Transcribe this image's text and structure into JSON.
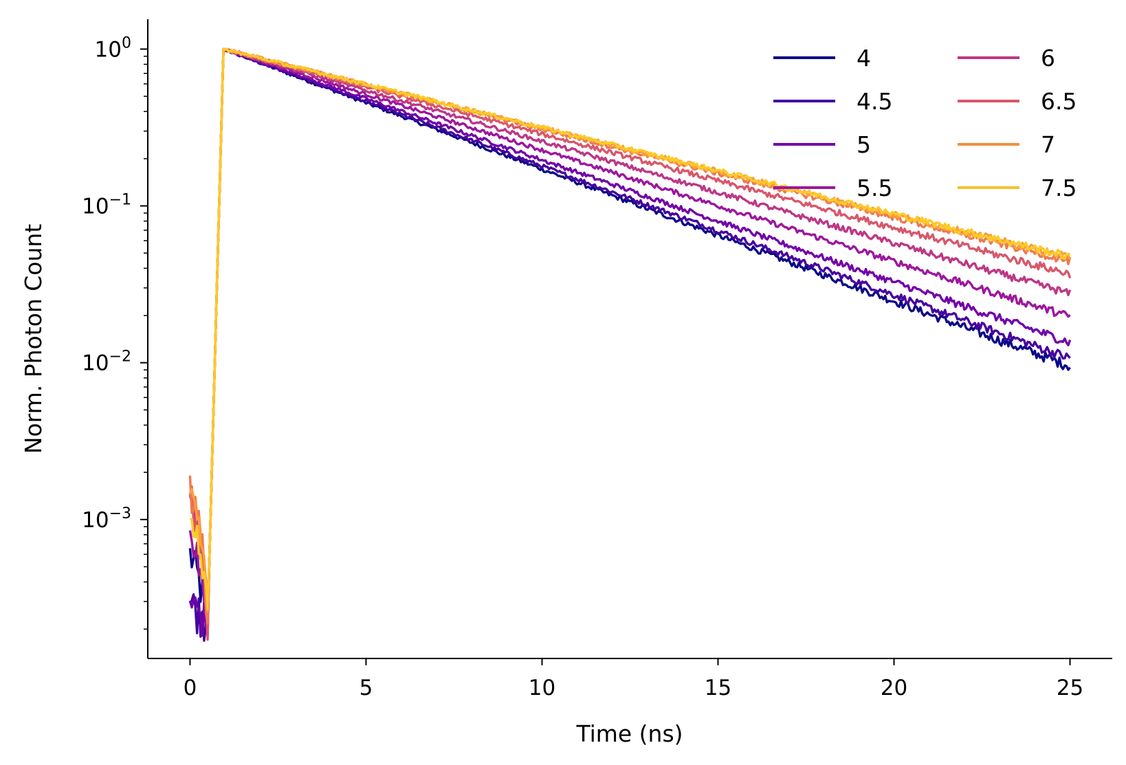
{
  "chart_data": {
    "type": "line",
    "title": "",
    "xlabel": "Time (ns)",
    "ylabel": "Norm. Photon Count",
    "yscale": "log",
    "xlim": [
      -1.2,
      26.2
    ],
    "ylim": [
      0.00013,
      1.55
    ],
    "xticks": [
      0,
      5,
      10,
      15,
      20,
      25
    ],
    "xtick_labels": [
      "0",
      "5",
      "10",
      "15",
      "20",
      "25"
    ],
    "yticks": [
      1,
      0.1,
      0.01,
      0.001
    ],
    "ytick_labels": [
      {
        "base": "10",
        "exp": "0"
      },
      {
        "base": "10",
        "exp": "−1"
      },
      {
        "base": "10",
        "exp": "−2"
      },
      {
        "base": "10",
        "exp": "−3"
      }
    ],
    "grid": false,
    "legend": {
      "placement": "top-right",
      "columns": 2
    },
    "peak_time": 0.95,
    "series": [
      {
        "name": "4",
        "color": "#0d0887",
        "decay_per_ns": 0.195,
        "floor": 0.00033,
        "baseline_start": 0.0006
      },
      {
        "name": "4.5",
        "color": "#46039f",
        "decay_per_ns": 0.19,
        "floor": 0.0003,
        "baseline_start": 0.0003
      },
      {
        "name": "5",
        "color": "#7201a8",
        "decay_per_ns": 0.18,
        "floor": 0.00033,
        "baseline_start": 0.0003
      },
      {
        "name": "5.5",
        "color": "#9c179e",
        "decay_per_ns": 0.164,
        "floor": 0.00035,
        "baseline_start": 0.0008
      },
      {
        "name": "6",
        "color": "#bd3786",
        "decay_per_ns": 0.15,
        "floor": 0.00045,
        "baseline_start": 0.0014
      },
      {
        "name": "6.5",
        "color": "#d8576b",
        "decay_per_ns": 0.138,
        "floor": 0.00065,
        "baseline_start": 0.0015
      },
      {
        "name": "7",
        "color": "#ed7953",
        "decay_per_ns": 0.13,
        "floor": 0.0007,
        "baseline_start": 0.0016
      },
      {
        "name": "7.5",
        "color": "#fb9f3a",
        "decay_per_ns": 0.128,
        "floor": 0.00075,
        "baseline_start": 0.0014
      },
      {
        "name": "",
        "color": "#fdca26",
        "decay_per_ns": 0.1275,
        "floor": 0.0008,
        "baseline_start": 0.0013
      }
    ],
    "legend_entries": [
      {
        "label": "4",
        "color": "#0d0887"
      },
      {
        "label": "4.5",
        "color": "#46039f"
      },
      {
        "label": "5",
        "color": "#7201a8"
      },
      {
        "label": "5.5",
        "color": "#9c179e"
      },
      {
        "label": "6",
        "color": "#bd3786"
      },
      {
        "label": "6.5",
        "color": "#d8576b"
      },
      {
        "label": "7",
        "color": "#f0903f"
      },
      {
        "label": "7.5",
        "color": "#f7c02a"
      }
    ]
  }
}
